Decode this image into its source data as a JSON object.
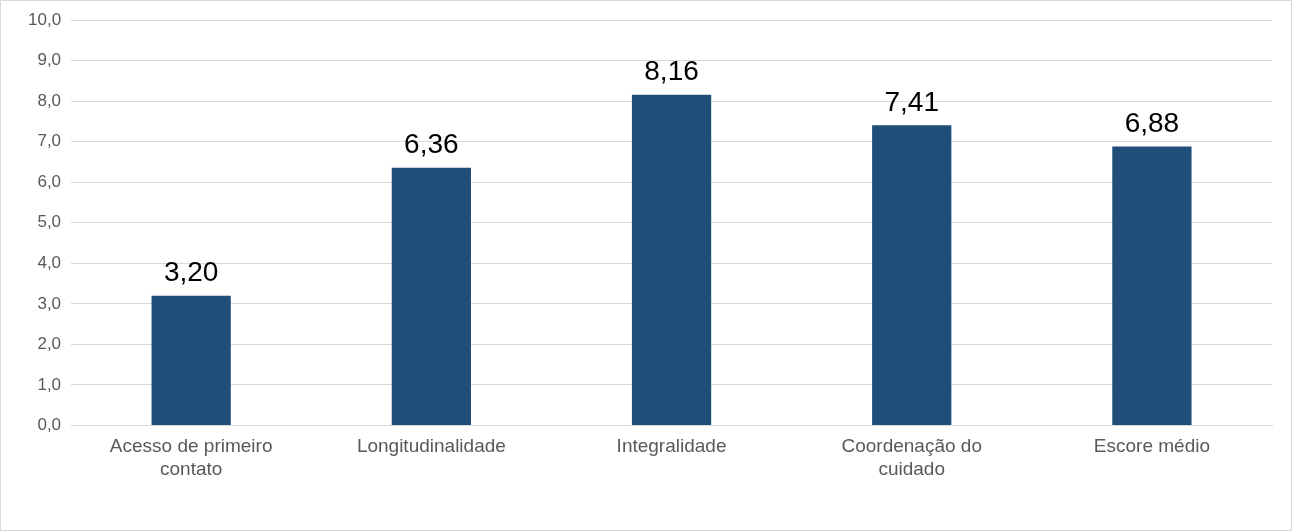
{
  "chart_data": {
    "type": "bar",
    "categories": [
      "Acesso de primeiro contato",
      "Longitudinalidade",
      "Integralidade",
      "Coordenação do cuidado",
      "Escore médio"
    ],
    "values": [
      3.2,
      6.36,
      8.16,
      7.41,
      6.88
    ],
    "value_labels": [
      "3,20",
      "6,36",
      "8,16",
      "7,41",
      "6,88"
    ],
    "color": "#1f4e79",
    "ylim": [
      0,
      10
    ],
    "yticks": [
      {
        "value": 0,
        "label": "0,0"
      },
      {
        "value": 1,
        "label": "1,0"
      },
      {
        "value": 2,
        "label": "2,0"
      },
      {
        "value": 3,
        "label": "3,0"
      },
      {
        "value": 4,
        "label": "4,0"
      },
      {
        "value": 5,
        "label": "5,0"
      },
      {
        "value": 6,
        "label": "6,0"
      },
      {
        "value": 7,
        "label": "7,0"
      },
      {
        "value": 8,
        "label": "8,0"
      },
      {
        "value": 9,
        "label": "9,0"
      },
      {
        "value": 10,
        "label": "10,0"
      }
    ],
    "grid": "y"
  }
}
